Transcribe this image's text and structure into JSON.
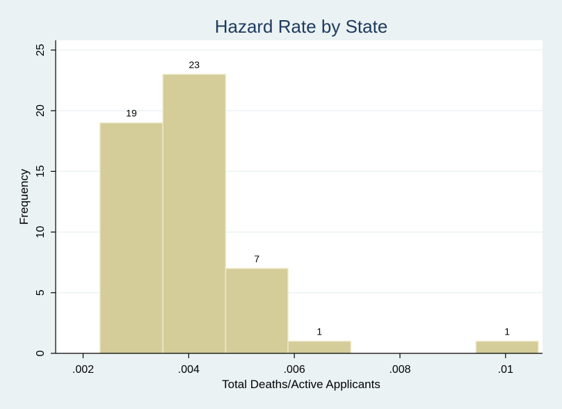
{
  "chart_data": {
    "type": "bar",
    "title": "Hazard Rate by State",
    "xlabel": "Total Deaths/Active Applicants",
    "ylabel": "Frequency",
    "bins": [
      {
        "start": 0.00232,
        "end": 0.00351,
        "value": 19
      },
      {
        "start": 0.00351,
        "end": 0.0047,
        "value": 23
      },
      {
        "start": 0.0047,
        "end": 0.00588,
        "value": 7
      },
      {
        "start": 0.00588,
        "end": 0.00707,
        "value": 1
      },
      {
        "start": 0.00707,
        "end": 0.00825,
        "value": 0
      },
      {
        "start": 0.00825,
        "end": 0.00944,
        "value": 0
      },
      {
        "start": 0.00944,
        "end": 0.01062,
        "value": 1
      }
    ],
    "data_labels": [
      "19",
      "23",
      "7",
      "1",
      "",
      "",
      "1"
    ],
    "xticks": [
      0.002,
      0.004,
      0.006,
      0.008,
      0.01
    ],
    "xtick_labels": [
      ".002",
      ".004",
      ".006",
      ".008",
      ".01"
    ],
    "yticks": [
      0,
      5,
      10,
      15,
      20,
      25
    ],
    "ytick_labels": [
      "0",
      "5",
      "10",
      "15",
      "20",
      "25"
    ],
    "xlim": [
      0.00148,
      0.0107
    ],
    "ylim": [
      0,
      25.8
    ],
    "grid": true,
    "colors": {
      "background": "#eaf2f3",
      "plot_background": "#ffffff",
      "bar_fill": "#d4cc99",
      "bar_stroke": "#eeeacc",
      "grid": "#eaf2f3",
      "title": "#1e3a5f"
    }
  }
}
